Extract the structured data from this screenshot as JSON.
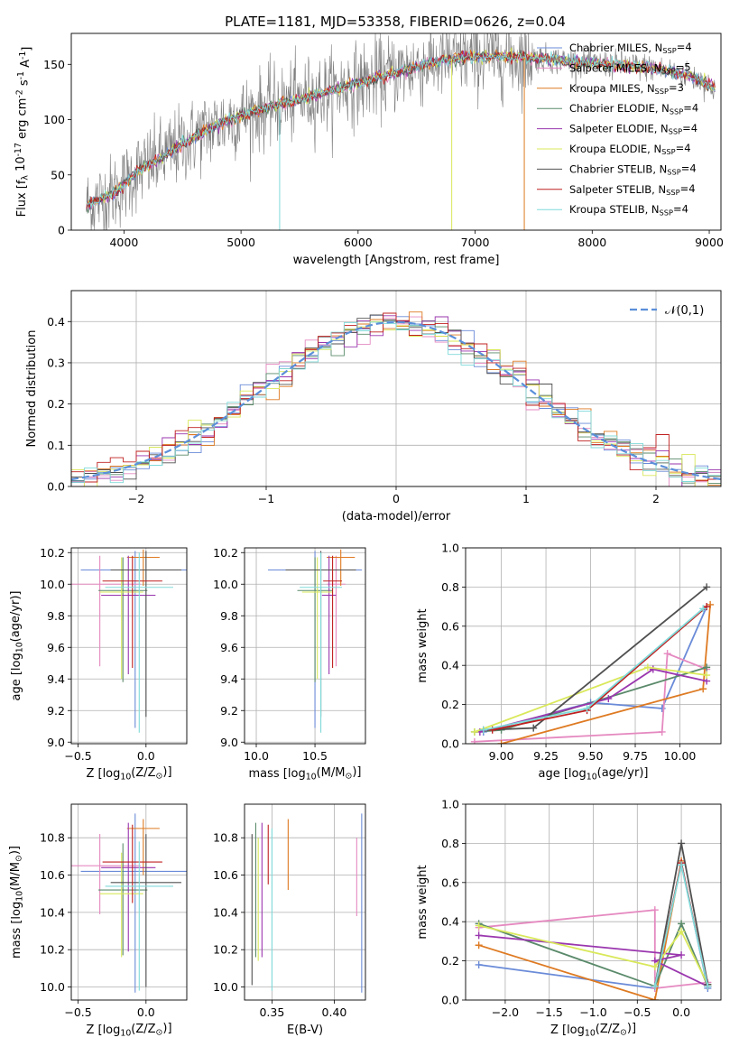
{
  "title": "PLATE=1181, MJD=53358, FIBERID=0626, z=0.04",
  "colors": {
    "chabrier_miles": "#6a8bd8",
    "salpeter_miles": "#e589c0",
    "kroupa_miles": "#de7a22",
    "chabrier_elodie": "#5a8a6a",
    "salpeter_elodie": "#9a36ae",
    "kroupa_elodie": "#d9e85a",
    "chabrier_stelib": "#505050",
    "salpeter_stelib": "#c02020",
    "kroupa_stelib": "#80dada",
    "data": "#808080",
    "normal": "#5b8fd9"
  },
  "chart_data": [
    {
      "id": "spectrum",
      "type": "line",
      "xlabel": "wavelength [Angstrom, rest frame]",
      "ylabel": "Flux [f$_\\lambda$ 10$^{-17}$ erg cm$^{-2}$ s$^{-1}$ A$^{-1}$]",
      "xlim": [
        3550,
        9100
      ],
      "ylim": [
        0,
        178
      ],
      "xticks": [
        4000,
        5000,
        6000,
        7000,
        8000,
        9000
      ],
      "yticks": [
        0,
        50,
        100,
        150
      ],
      "legend": [
        "Chabrier MILES, N$_{SSP}$=4",
        "Salpeter MILES, N$_{SSP}$=5",
        "Kroupa MILES, N$_{SSP}$=3",
        "Chabrier ELODIE, N$_{SSP}$=4",
        "Salpeter ELODIE, N$_{SSP}$=4",
        "Kroupa ELODIE, N$_{SSP}$=4",
        "Chabrier STELIB, N$_{SSP}$=4",
        "Salpeter STELIB, N$_{SSP}$=4",
        "Kroupa STELIB, N$_{SSP}$=4"
      ],
      "model_continuum": {
        "x": [
          3680,
          3800,
          3950,
          4100,
          4300,
          4500,
          4700,
          4900,
          5100,
          5300,
          5500,
          5700,
          5900,
          6100,
          6300,
          6500,
          6700,
          6900,
          7100,
          7300,
          7500,
          7700,
          7900,
          8100,
          8300,
          8500,
          8700,
          8900,
          9050
        ],
        "y": [
          22,
          28,
          36,
          52,
          64,
          78,
          90,
          100,
          107,
          113,
          118,
          124,
          130,
          136,
          142,
          148,
          153,
          157,
          157,
          157,
          156,
          154,
          152,
          150,
          149,
          147,
          143,
          137,
          128
        ]
      },
      "data_noise_sigma": 18,
      "legend_pos": "upper right"
    },
    {
      "id": "residual_hist",
      "type": "bar",
      "xlabel": "(data-model)/error",
      "ylabel": "Normed distribution",
      "xlim": [
        -2.5,
        2.5
      ],
      "ylim": [
        0,
        0.475
      ],
      "xticks": [
        -2,
        -1,
        0,
        1,
        2
      ],
      "yticks": [
        0.0,
        0.1,
        0.2,
        0.3,
        0.4
      ],
      "bin_width": 0.1,
      "bin_start": -2.5,
      "legend": [
        "$\\mathcal{N}(0,1)$"
      ],
      "legend_pos": "upper right",
      "grid": true
    },
    {
      "id": "age_vs_Z",
      "type": "scatter",
      "xlabel": "Z [log$_{10}$(Z/Z$_\\odot$)]",
      "ylabel": "age  [log$_{10}$(age/yr)]",
      "xlim": [
        -0.55,
        0.3
      ],
      "ylim": [
        8.99,
        10.23
      ],
      "xticks": [
        -0.5,
        0.0
      ],
      "yticks": [
        9.0,
        9.2,
        9.4,
        9.6,
        9.8,
        10.0,
        10.2
      ],
      "grid": true,
      "points": [
        {
          "model": "chabrier_miles",
          "x": -0.08,
          "y": 10.09,
          "xerr": 0.4,
          "yerr": [
            1.0,
            0.12
          ]
        },
        {
          "model": "salpeter_miles",
          "x": -0.34,
          "y": 10.0,
          "xerr": 0.3,
          "yerr": [
            0.52,
            0.18
          ]
        },
        {
          "model": "kroupa_miles",
          "x": -0.02,
          "y": 10.17,
          "xerr": 0.12,
          "yerr": [
            0.18,
            0.05
          ]
        },
        {
          "model": "chabrier_elodie",
          "x": -0.17,
          "y": 9.96,
          "xerr": 0.18,
          "yerr": [
            0.58,
            0.21
          ]
        },
        {
          "model": "salpeter_elodie",
          "x": -0.13,
          "y": 9.93,
          "xerr": 0.2,
          "yerr": [
            0.5,
            0.25
          ]
        },
        {
          "model": "kroupa_elodie",
          "x": -0.18,
          "y": 9.95,
          "xerr": 0.16,
          "yerr": [
            0.55,
            0.22
          ]
        },
        {
          "model": "chabrier_stelib",
          "x": 0.0,
          "y": 10.09,
          "xerr": 0.26,
          "yerr": [
            0.93,
            0.12
          ]
        },
        {
          "model": "salpeter_stelib",
          "x": -0.1,
          "y": 10.02,
          "xerr": 0.22,
          "yerr": [
            0.55,
            0.16
          ]
        },
        {
          "model": "kroupa_stelib",
          "x": -0.05,
          "y": 9.98,
          "xerr": 0.25,
          "yerr": [
            0.92,
            0.22
          ]
        }
      ]
    },
    {
      "id": "age_vs_mass",
      "type": "scatter",
      "xlabel": "mass [log$_{10}$(M/M$_\\odot$)]",
      "ylabel": "",
      "xlim": [
        9.9,
        10.93
      ],
      "ylim": [
        8.99,
        10.23
      ],
      "xticks": [
        10.0,
        10.5
      ],
      "yticks": [
        9.0,
        9.2,
        9.4,
        9.6,
        9.8,
        10.0,
        10.2
      ],
      "grid": true,
      "points": [
        {
          "model": "chabrier_miles",
          "x": 10.5,
          "y": 10.09,
          "xerr": 0.4,
          "yerr": [
            1.0,
            0.12
          ]
        },
        {
          "model": "salpeter_miles",
          "x": 10.68,
          "y": 10.0,
          "xerr": 0.08,
          "yerr": [
            0.52,
            0.18
          ]
        },
        {
          "model": "kroupa_miles",
          "x": 10.72,
          "y": 10.17,
          "xerr": 0.12,
          "yerr": [
            0.18,
            0.05
          ]
        },
        {
          "model": "chabrier_elodie",
          "x": 10.5,
          "y": 9.96,
          "xerr": 0.15,
          "yerr": [
            0.58,
            0.21
          ]
        },
        {
          "model": "salpeter_elodie",
          "x": 10.62,
          "y": 9.93,
          "xerr": 0.06,
          "yerr": [
            0.5,
            0.25
          ]
        },
        {
          "model": "kroupa_elodie",
          "x": 10.52,
          "y": 9.95,
          "xerr": 0.13,
          "yerr": [
            0.55,
            0.22
          ]
        },
        {
          "model": "chabrier_stelib",
          "x": 10.55,
          "y": 10.09,
          "xerr": 0.3,
          "yerr": [
            0.93,
            0.12
          ]
        },
        {
          "model": "salpeter_stelib",
          "x": 10.65,
          "y": 10.02,
          "xerr": 0.08,
          "yerr": [
            0.55,
            0.16
          ]
        },
        {
          "model": "kroupa_stelib",
          "x": 10.55,
          "y": 9.98,
          "xerr": 0.18,
          "yerr": [
            0.92,
            0.22
          ]
        }
      ]
    },
    {
      "id": "weight_vs_age",
      "type": "line",
      "xlabel": "age  [log$_{10}$(age/yr)]",
      "ylabel": "mass weight",
      "xlim": [
        8.8,
        10.23
      ],
      "ylim": [
        0,
        1.0
      ],
      "xticks": [
        9.0,
        9.25,
        9.5,
        9.75,
        10.0
      ],
      "yticks": [
        0.0,
        0.2,
        0.4,
        0.6,
        0.8,
        1.0
      ],
      "grid": true,
      "series": [
        {
          "model": "chabrier_miles",
          "points": [
            [
              8.9,
              0.06
            ],
            [
              9.5,
              0.21
            ],
            [
              9.9,
              0.18
            ],
            [
              10.15,
              0.7
            ]
          ]
        },
        {
          "model": "salpeter_miles",
          "points": [
            [
              8.85,
              0.01
            ],
            [
              9.9,
              0.06
            ],
            [
              9.93,
              0.46
            ],
            [
              10.15,
              0.38
            ]
          ]
        },
        {
          "model": "kroupa_miles",
          "points": [
            [
              9.0,
              0.0
            ],
            [
              10.13,
              0.28
            ],
            [
              10.17,
              0.71
            ]
          ]
        },
        {
          "model": "chabrier_elodie",
          "points": [
            [
              8.85,
              0.06
            ],
            [
              9.0,
              0.07
            ],
            [
              10.15,
              0.39
            ]
          ]
        },
        {
          "model": "salpeter_elodie",
          "points": [
            [
              8.88,
              0.06
            ],
            [
              9.6,
              0.23
            ],
            [
              9.85,
              0.38
            ],
            [
              10.15,
              0.32
            ]
          ]
        },
        {
          "model": "kroupa_elodie",
          "points": [
            [
              8.85,
              0.06
            ],
            [
              9.82,
              0.39
            ],
            [
              10.15,
              0.35
            ]
          ]
        },
        {
          "model": "chabrier_stelib",
          "points": [
            [
              8.9,
              0.07
            ],
            [
              9.18,
              0.08
            ],
            [
              10.15,
              0.8
            ]
          ]
        },
        {
          "model": "salpeter_stelib",
          "points": [
            [
              8.95,
              0.07
            ],
            [
              9.48,
              0.17
            ],
            [
              10.15,
              0.7
            ]
          ]
        },
        {
          "model": "kroupa_stelib",
          "points": [
            [
              8.9,
              0.07
            ],
            [
              9.48,
              0.18
            ],
            [
              10.13,
              0.69
            ]
          ]
        }
      ]
    },
    {
      "id": "mass_vs_Z",
      "type": "scatter",
      "xlabel": "Z [log$_{10}$(Z/Z$_\\odot$)]",
      "ylabel": "mass [log$_{10}$(M/M$_\\odot$)]",
      "xlim": [
        -0.55,
        0.3
      ],
      "ylim": [
        9.93,
        10.98
      ],
      "xticks": [
        -0.5,
        0.0
      ],
      "yticks": [
        10.0,
        10.2,
        10.4,
        10.6,
        10.8
      ],
      "grid": true,
      "points": [
        {
          "model": "chabrier_miles",
          "x": -0.08,
          "y": 10.62,
          "xerr": 0.4,
          "yerr": [
            0.65,
            0.31
          ]
        },
        {
          "model": "salpeter_miles",
          "x": -0.34,
          "y": 10.65,
          "xerr": 0.3,
          "yerr": [
            0.26,
            0.17
          ]
        },
        {
          "model": "kroupa_miles",
          "x": -0.02,
          "y": 10.85,
          "xerr": 0.12,
          "yerr": [
            0.25,
            0.05
          ]
        },
        {
          "model": "chabrier_elodie",
          "x": -0.17,
          "y": 10.52,
          "xerr": 0.18,
          "yerr": [
            0.35,
            0.25
          ]
        },
        {
          "model": "salpeter_elodie",
          "x": -0.13,
          "y": 10.64,
          "xerr": 0.2,
          "yerr": [
            0.45,
            0.24
          ]
        },
        {
          "model": "kroupa_elodie",
          "x": -0.18,
          "y": 10.5,
          "xerr": 0.16,
          "yerr": [
            0.34,
            0.22
          ]
        },
        {
          "model": "chabrier_stelib",
          "x": 0.0,
          "y": 10.56,
          "xerr": 0.26,
          "yerr": [
            0.56,
            0.26
          ]
        },
        {
          "model": "salpeter_stelib",
          "x": -0.1,
          "y": 10.67,
          "xerr": 0.22,
          "yerr": [
            0.22,
            0.2
          ]
        },
        {
          "model": "kroupa_stelib",
          "x": -0.05,
          "y": 10.54,
          "xerr": 0.25,
          "yerr": [
            0.56,
            0.24
          ]
        }
      ]
    },
    {
      "id": "mass_vs_ebv",
      "type": "scatter",
      "xlabel": "E(B-V)",
      "ylabel": "",
      "xlim": [
        0.328,
        0.425
      ],
      "ylim": [
        9.93,
        10.98
      ],
      "xticks": [
        0.35,
        0.4
      ],
      "yticks": [
        10.0,
        10.2,
        10.4,
        10.6,
        10.8
      ],
      "grid": true,
      "points": [
        {
          "model": "chabrier_miles",
          "x": 0.422,
          "y": 10.62,
          "xerr": 0,
          "yerr": [
            0.65,
            0.31
          ]
        },
        {
          "model": "salpeter_miles",
          "x": 0.418,
          "y": 10.6,
          "xerr": 0,
          "yerr": [
            0.22,
            0.2
          ]
        },
        {
          "model": "kroupa_miles",
          "x": 0.363,
          "y": 10.71,
          "xerr": 0,
          "yerr": [
            0.19,
            0.19
          ]
        },
        {
          "model": "chabrier_elodie",
          "x": 0.337,
          "y": 10.5,
          "xerr": 0,
          "yerr": [
            0.34,
            0.38
          ]
        },
        {
          "model": "salpeter_elodie",
          "x": 0.342,
          "y": 10.6,
          "xerr": 0,
          "yerr": [
            0.44,
            0.28
          ]
        },
        {
          "model": "kroupa_elodie",
          "x": 0.339,
          "y": 10.5,
          "xerr": 0,
          "yerr": [
            0.36,
            0.3
          ]
        },
        {
          "model": "chabrier_stelib",
          "x": 0.334,
          "y": 10.42,
          "xerr": 0,
          "yerr": [
            0.41,
            0.4
          ]
        },
        {
          "model": "salpeter_stelib",
          "x": 0.347,
          "y": 10.71,
          "xerr": 0,
          "yerr": [
            0.16,
            0.16
          ]
        },
        {
          "model": "kroupa_stelib",
          "x": 0.35,
          "y": 10.45,
          "xerr": 0,
          "yerr": [
            0.47,
            0.4
          ]
        }
      ]
    },
    {
      "id": "weight_vs_Z",
      "type": "line",
      "xlabel": "Z [log$_{10}$(Z/Z$_\\odot$)]",
      "ylabel": "mass weight",
      "xlim": [
        -2.45,
        0.45
      ],
      "ylim": [
        0,
        1.0
      ],
      "xticks": [
        -2.0,
        -1.5,
        -1.0,
        -0.5,
        0.0
      ],
      "yticks": [
        0.0,
        0.2,
        0.4,
        0.6,
        0.8,
        1.0
      ],
      "grid": true,
      "series": [
        {
          "model": "chabrier_miles",
          "points": [
            [
              -2.3,
              0.18
            ],
            [
              -0.3,
              0.06
            ],
            [
              0.0,
              0.7
            ],
            [
              0.3,
              0.06
            ]
          ]
        },
        {
          "model": "salpeter_miles",
          "points": [
            [
              -2.3,
              0.37
            ],
            [
              -0.3,
              0.46
            ],
            [
              -0.3,
              0.06
            ],
            [
              0.3,
              0.09
            ]
          ]
        },
        {
          "model": "kroupa_miles",
          "points": [
            [
              -2.3,
              0.28
            ],
            [
              -0.3,
              0.0
            ],
            [
              0.0,
              0.71
            ]
          ]
        },
        {
          "model": "chabrier_elodie",
          "points": [
            [
              -2.3,
              0.39
            ],
            [
              -0.3,
              0.07
            ],
            [
              0.0,
              0.39
            ],
            [
              0.3,
              0.07
            ]
          ]
        },
        {
          "model": "salpeter_elodie",
          "points": [
            [
              -2.3,
              0.33
            ],
            [
              0.0,
              0.23
            ],
            [
              -0.3,
              0.2
            ],
            [
              0.3,
              0.07
            ]
          ]
        },
        {
          "model": "kroupa_elodie",
          "points": [
            [
              -2.3,
              0.38
            ],
            [
              -0.3,
              0.17
            ],
            [
              0.0,
              0.35
            ],
            [
              0.3,
              0.08
            ]
          ]
        },
        {
          "model": "chabrier_stelib",
          "points": [
            [
              -0.3,
              0.07
            ],
            [
              0.0,
              0.8
            ],
            [
              0.3,
              0.08
            ]
          ]
        },
        {
          "model": "salpeter_stelib",
          "points": [
            [
              -0.3,
              0.07
            ],
            [
              0.0,
              0.7
            ],
            [
              0.3,
              0.07
            ]
          ]
        },
        {
          "model": "kroupa_stelib",
          "points": [
            [
              -0.3,
              0.07
            ],
            [
              0.0,
              0.69
            ],
            [
              0.3,
              0.07
            ]
          ]
        }
      ]
    }
  ]
}
